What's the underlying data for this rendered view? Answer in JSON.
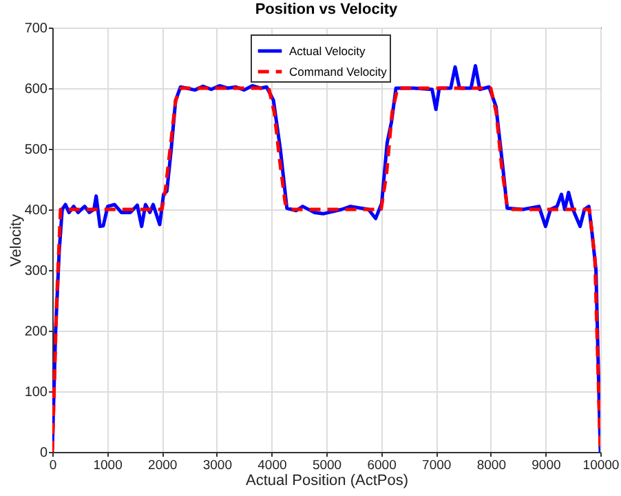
{
  "chart_data": {
    "type": "line",
    "title": "Position vs Velocity",
    "xlabel": "Actual Position (ActPos)",
    "ylabel": "Velocity",
    "xlim": [
      0,
      10000
    ],
    "ylim": [
      0,
      700
    ],
    "xticks": [
      0,
      1000,
      2000,
      3000,
      4000,
      5000,
      6000,
      7000,
      8000,
      9000,
      10000
    ],
    "yticks": [
      0,
      100,
      200,
      300,
      400,
      500,
      600,
      700
    ],
    "grid": true,
    "legend": "top",
    "series": [
      {
        "name": "Actual Velocity",
        "color": "#0000ff",
        "line_style": "solid",
        "x": [
          0,
          60,
          125,
          180,
          240,
          305,
          390,
          470,
          590,
          675,
          760,
          800,
          870,
          930,
          1010,
          1135,
          1260,
          1425,
          1550,
          1630,
          1700,
          1780,
          1840,
          1960,
          2030,
          2090,
          2170,
          2250,
          2340,
          2450,
          2600,
          2750,
          2900,
          3050,
          3200,
          3350,
          3500,
          3650,
          3800,
          3910,
          4035,
          4160,
          4280,
          4450,
          4570,
          4780,
          4950,
          5280,
          5440,
          5770,
          5900,
          6010,
          6110,
          6190,
          6270,
          6600,
          6930,
          7000,
          7060,
          7270,
          7350,
          7430,
          7640,
          7720,
          7800,
          7970,
          8095,
          8220,
          8300,
          8590,
          8880,
          9000,
          9090,
          9210,
          9290,
          9350,
          9420,
          9500,
          9630,
          9710,
          9790,
          9850,
          9920,
          10000
        ],
        "values": [
          5,
          200,
          330,
          400,
          408,
          395,
          405,
          395,
          405,
          395,
          400,
          422,
          372,
          373,
          405,
          408,
          395,
          395,
          407,
          372,
          408,
          395,
          408,
          375,
          425,
          430,
          500,
          580,
          602,
          600,
          597,
          603,
          598,
          604,
          600,
          602,
          597,
          604,
          600,
          602,
          580,
          500,
          402,
          398,
          405,
          395,
          393,
          400,
          405,
          400,
          385,
          410,
          510,
          545,
          600,
          600,
          598,
          565,
          600,
          600,
          635,
          600,
          600,
          637,
          598,
          602,
          570,
          470,
          402,
          400,
          405,
          372,
          400,
          405,
          425,
          400,
          428,
          400,
          372,
          400,
          405,
          360,
          300,
          0
        ]
      },
      {
        "name": "Command Velocity",
        "color": "#ff0000",
        "line_style": "dashed",
        "x": [
          0,
          80,
          150,
          2000,
          2060,
          2150,
          2250,
          2350,
          3950,
          4050,
          4150,
          4250,
          4350,
          6000,
          6100,
          6200,
          6300,
          8000,
          8100,
          8200,
          8300,
          8400,
          9800,
          9900,
          10000
        ],
        "values": [
          0,
          250,
          400,
          400,
          430,
          500,
          580,
          600,
          600,
          560,
          480,
          410,
          400,
          400,
          460,
          560,
          600,
          600,
          560,
          470,
          405,
          400,
          400,
          320,
          0
        ]
      }
    ]
  }
}
